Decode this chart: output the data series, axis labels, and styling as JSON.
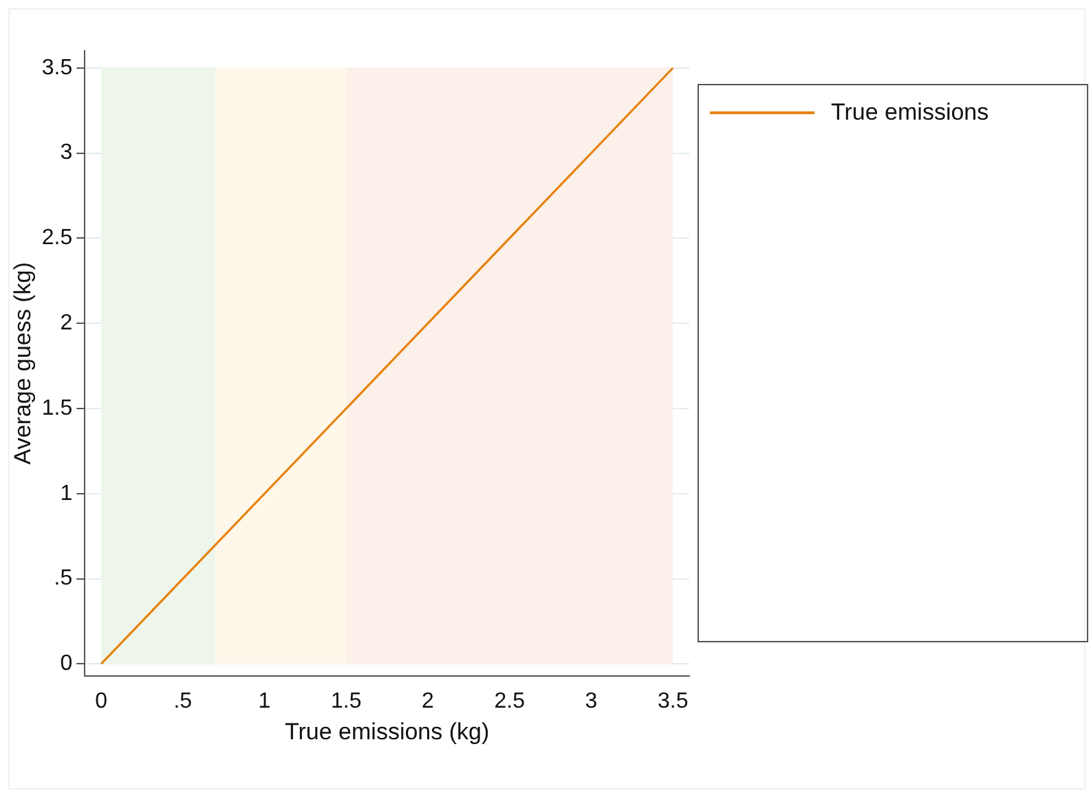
{
  "chart_data": {
    "type": "line",
    "xlabel": "True emissions (kg)",
    "ylabel": "Average guess (kg)",
    "x": [
      0,
      3.5
    ],
    "series": [
      {
        "name": "True emissions",
        "color": "#e8820e",
        "values": [
          0,
          3.5
        ]
      }
    ],
    "xlim": [
      -0.1,
      3.6
    ],
    "ylim": [
      -0.07,
      3.6
    ],
    "xticks": [
      0,
      {
        "value": 0.5,
        "label": ".5"
      },
      1,
      1.5,
      2,
      2.5,
      3,
      3.5
    ],
    "yticks": [
      0,
      {
        "value": 0.5,
        "label": ".5"
      },
      1,
      1.5,
      2,
      2.5,
      3,
      3.5
    ],
    "bands": [
      {
        "axis": "x",
        "from": 0,
        "to": 0.7,
        "color": "#eef6ec"
      },
      {
        "axis": "x",
        "from": 0.7,
        "to": 1.5,
        "color": "#fff8ea"
      },
      {
        "axis": "x",
        "from": 1.5,
        "to": 3.5,
        "color": "#fcf1ea"
      }
    ],
    "grid": "y",
    "legend": "right",
    "marker": "none",
    "line_style": "solid"
  }
}
